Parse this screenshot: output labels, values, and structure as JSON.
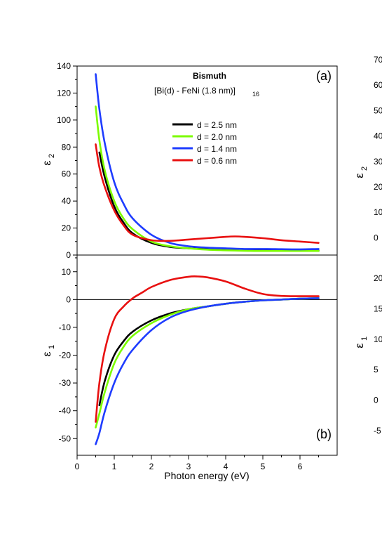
{
  "chart_data": [
    {
      "panel_label": "(a)",
      "type": "line",
      "title": "Bismuth",
      "subtitle": "[Bi(d) - FeNi (1.8 nm)]",
      "subtitle_subscript": "16",
      "ylabel_base": "ε",
      "ylabel_sub": "2",
      "xlim": [
        0,
        7
      ],
      "ylim": [
        0,
        140
      ],
      "yticks": [
        0,
        20,
        40,
        60,
        80,
        100,
        120,
        140
      ],
      "legend_placement": "upper-middle",
      "series": [
        {
          "name": "d = 2.5 nm",
          "color": "#000000",
          "x": [
            0.6,
            0.75,
            1.0,
            1.25,
            1.5,
            2.0,
            2.5,
            3.0,
            3.5,
            4.0,
            4.5,
            5.0,
            5.5,
            6.0,
            6.5
          ],
          "y": [
            76,
            57,
            36,
            24,
            16,
            9,
            6,
            5,
            4.5,
            4,
            4,
            3.7,
            3.5,
            3.3,
            3.2
          ]
        },
        {
          "name": "d = 2.0 nm",
          "color": "#7cfc00",
          "x": [
            0.5,
            0.6,
            0.75,
            1.0,
            1.25,
            1.5,
            2.0,
            2.5,
            3.0,
            3.5,
            4.0,
            4.5,
            5.0,
            5.5,
            6.0,
            6.5
          ],
          "y": [
            110,
            85,
            62,
            40,
            27,
            19,
            10,
            6.5,
            5,
            4,
            3.5,
            3.2,
            3,
            3,
            3,
            3
          ]
        },
        {
          "name": "d = 1.4 nm",
          "color": "#1e3cff",
          "x": [
            0.5,
            0.6,
            0.75,
            1.0,
            1.25,
            1.5,
            2.0,
            2.5,
            3.0,
            3.5,
            4.0,
            4.5,
            5.0,
            5.5,
            6.0,
            6.5
          ],
          "y": [
            134,
            108,
            82,
            54,
            38,
            27,
            15,
            9,
            6.5,
            5.5,
            5,
            4.5,
            4.5,
            4.3,
            4.2,
            4.5
          ]
        },
        {
          "name": "d = 0.6 nm",
          "color": "#e81010",
          "x": [
            0.5,
            0.6,
            0.75,
            1.0,
            1.25,
            1.5,
            2.0,
            2.5,
            3.0,
            3.5,
            4.0,
            4.25,
            4.5,
            5.0,
            5.5,
            6.0,
            6.5
          ],
          "y": [
            82,
            65,
            50,
            33,
            22,
            15,
            11,
            10.5,
            11.5,
            12.5,
            13.5,
            13.8,
            13.5,
            12.5,
            11,
            10,
            9
          ]
        }
      ]
    },
    {
      "panel_label": "(b)",
      "type": "line",
      "xlabel": "Photon energy (eV)",
      "ylabel_base": "ε",
      "ylabel_sub": "1",
      "xlim": [
        0,
        7
      ],
      "ylim": [
        -56,
        16
      ],
      "xticks": [
        0,
        1,
        2,
        3,
        4,
        5,
        6
      ],
      "yticks": [
        -50,
        -40,
        -30,
        -20,
        -10,
        0,
        10
      ],
      "zero_line": true,
      "series": [
        {
          "name": "d = 2.5 nm",
          "color": "#000000",
          "x": [
            0.6,
            0.75,
            1.0,
            1.25,
            1.5,
            2.0,
            2.5,
            3.0,
            3.5,
            4.0,
            4.5,
            5.0,
            5.5,
            6.0,
            6.5
          ],
          "y": [
            -38,
            -29,
            -20,
            -15,
            -11.5,
            -7.5,
            -5,
            -3.5,
            -2.5,
            -1.5,
            -0.8,
            -0.3,
            0,
            0.3,
            0.5
          ]
        },
        {
          "name": "d = 2.0 nm",
          "color": "#7cfc00",
          "x": [
            0.5,
            0.6,
            0.75,
            1.0,
            1.25,
            1.5,
            2.0,
            2.5,
            3.0,
            3.5,
            4.0,
            4.5,
            5.0,
            5.5,
            6.0,
            6.5
          ],
          "y": [
            -46,
            -41,
            -33,
            -23,
            -17,
            -13,
            -8.5,
            -5.5,
            -3.5,
            -2.5,
            -1.5,
            -0.8,
            -0.3,
            0,
            0.3,
            0.5
          ]
        },
        {
          "name": "d = 1.4 nm",
          "color": "#1e3cff",
          "x": [
            0.5,
            0.6,
            0.75,
            1.0,
            1.25,
            1.5,
            2.0,
            2.5,
            3.0,
            3.5,
            4.0,
            4.5,
            5.0,
            5.5,
            6.0,
            6.5
          ],
          "y": [
            -52,
            -48,
            -40,
            -30,
            -23,
            -18,
            -11,
            -6.5,
            -4,
            -2.5,
            -1.5,
            -0.8,
            -0.3,
            0,
            0.3,
            0.5
          ]
        },
        {
          "name": "d = 0.6 nm",
          "color": "#e81010",
          "x": [
            0.5,
            0.6,
            0.75,
            1.0,
            1.25,
            1.5,
            1.75,
            2.0,
            2.5,
            3.0,
            3.25,
            3.5,
            4.0,
            4.5,
            5.0,
            5.5,
            6.0,
            6.5
          ],
          "y": [
            -44,
            -30,
            -18,
            -7,
            -2.5,
            0.5,
            2.5,
            4.5,
            7,
            8.2,
            8.3,
            8,
            6.5,
            4,
            2,
            1.3,
            1.2,
            1.2
          ]
        }
      ]
    }
  ],
  "right_cutoff": {
    "top_ticks": [
      "70",
      "60",
      "50",
      "40",
      "30",
      "20",
      "10",
      "0"
    ],
    "top_ylabel_base": "ε",
    "top_ylabel_sub": "2",
    "bottom_ticks": [
      "20",
      "15",
      "10",
      "5",
      "0",
      "-5"
    ],
    "bottom_ylabel_base": "ε",
    "bottom_ylabel_sub": "1"
  }
}
